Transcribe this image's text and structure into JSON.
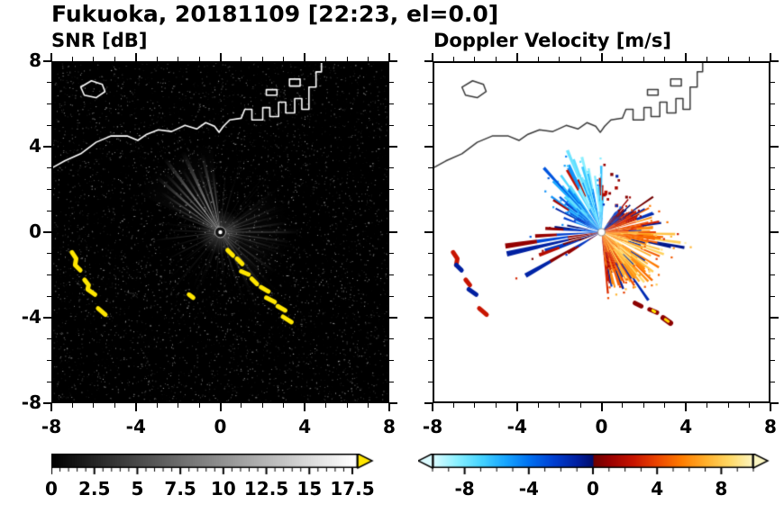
{
  "title": "Fukuoka, 20181109 [22:23, el=0.0]",
  "axes": {
    "xlim": [
      -8,
      8
    ],
    "ylim": [
      -8,
      8
    ],
    "major_ticks": [
      -8,
      -4,
      0,
      4,
      8
    ],
    "minor_step": 1,
    "x_tick_labels": [
      "-8",
      "-4",
      "0",
      "4",
      "8"
    ],
    "y_tick_values": [
      8,
      4,
      0,
      -4,
      -8
    ],
    "y_tick_labels": [
      "8",
      "4",
      "0",
      "-4",
      "-8"
    ]
  },
  "coastline": {
    "snr_color": "#ffffff",
    "doppler_color": "#3a3a3a",
    "paths": [
      {
        "closed": false,
        "pts": [
          [
            -8,
            3.07
          ],
          [
            -7.45,
            3.37
          ],
          [
            -6.68,
            3.71
          ],
          [
            -5.95,
            4.25
          ],
          [
            -5.23,
            4.55
          ],
          [
            -4.46,
            4.55
          ],
          [
            -3.95,
            4.34
          ],
          [
            -3.52,
            4.63
          ],
          [
            -2.97,
            4.84
          ],
          [
            -2.33,
            4.76
          ],
          [
            -1.69,
            5.05
          ],
          [
            -1.13,
            4.88
          ],
          [
            -0.7,
            5.18
          ],
          [
            -0.28,
            5.01
          ],
          [
            -0.06,
            4.72
          ],
          [
            0.15,
            5.01
          ],
          [
            0.45,
            5.31
          ],
          [
            1.0,
            5.39
          ],
          [
            1.17,
            5.81
          ],
          [
            1.51,
            5.81
          ],
          [
            1.51,
            5.31
          ],
          [
            2.03,
            5.31
          ],
          [
            2.03,
            5.89
          ],
          [
            2.37,
            5.89
          ],
          [
            2.37,
            5.47
          ],
          [
            2.79,
            5.47
          ],
          [
            2.79,
            6.15
          ],
          [
            3.13,
            6.15
          ],
          [
            3.13,
            5.64
          ],
          [
            3.56,
            5.64
          ],
          [
            3.56,
            6.32
          ],
          [
            3.9,
            6.32
          ],
          [
            3.9,
            5.81
          ],
          [
            4.24,
            5.81
          ],
          [
            4.24,
            6.86
          ],
          [
            4.58,
            6.86
          ],
          [
            4.58,
            7.58
          ],
          [
            4.84,
            7.58
          ],
          [
            4.84,
            8.0
          ]
        ]
      },
      {
        "closed": true,
        "pts": [
          [
            -6.68,
            6.86
          ],
          [
            -6.17,
            7.16
          ],
          [
            -5.65,
            6.99
          ],
          [
            -5.52,
            6.65
          ],
          [
            -5.95,
            6.36
          ],
          [
            -6.51,
            6.48
          ]
        ]
      },
      {
        "closed": true,
        "pts": [
          [
            2.2,
            6.74
          ],
          [
            2.71,
            6.74
          ],
          [
            2.71,
            6.48
          ],
          [
            2.2,
            6.48
          ]
        ]
      },
      {
        "closed": true,
        "pts": [
          [
            3.31,
            7.24
          ],
          [
            3.82,
            7.24
          ],
          [
            3.82,
            6.91
          ],
          [
            3.31,
            6.91
          ]
        ]
      }
    ]
  },
  "chart_data": [
    {
      "type": "heatmap",
      "name": "snr-ppi",
      "title": "SNR [dB]",
      "xlim": [
        -8,
        8
      ],
      "ylim": [
        -8,
        8
      ],
      "background": "#000000",
      "radar_center": [
        0,
        0
      ],
      "colorbar": {
        "min": 0,
        "max": 17.5,
        "ticks": [
          0,
          2.5,
          5,
          7.5,
          10,
          12.5,
          15,
          17.5
        ],
        "tick_labels": [
          "0",
          "2.5",
          "5",
          "7.5",
          "10",
          "12.5",
          "15",
          "17.5"
        ],
        "ramp_start": "#000000",
        "ramp_end": "#ffffff",
        "overflow_color": "#ffe600"
      },
      "beams": [
        [
          97,
          2,
          3.0,
          0.3
        ],
        [
          103,
          2.5,
          3.8,
          0.42
        ],
        [
          109,
          2,
          3.2,
          0.3
        ],
        [
          115,
          3,
          4.2,
          0.46
        ],
        [
          121,
          2,
          3.5,
          0.34
        ],
        [
          127,
          2.5,
          4.4,
          0.5
        ],
        [
          133,
          2,
          3.8,
          0.4
        ],
        [
          139,
          2.5,
          4.0,
          0.44
        ],
        [
          146,
          2,
          3.4,
          0.34
        ],
        [
          152,
          2,
          2.8,
          0.24
        ],
        [
          158,
          2,
          2.4,
          0.18
        ],
        [
          168,
          1.5,
          2.2,
          0.14
        ],
        [
          178,
          1.5,
          2.6,
          0.16
        ],
        [
          187,
          1.5,
          3.2,
          0.2
        ],
        [
          196,
          1.5,
          2.3,
          0.14
        ],
        [
          207,
          1.5,
          2.8,
          0.16
        ],
        [
          218,
          1.5,
          2.2,
          0.12
        ],
        [
          252,
          1.5,
          2.0,
          0.1
        ],
        [
          265,
          1.5,
          2.4,
          0.12
        ],
        [
          275,
          1.5,
          2.2,
          0.1
        ],
        [
          288,
          2,
          2.6,
          0.14
        ],
        [
          298,
          2,
          3.0,
          0.2
        ],
        [
          308,
          2,
          3.4,
          0.22
        ],
        [
          316,
          2,
          2.8,
          0.18
        ],
        [
          324,
          2,
          3.2,
          0.2
        ],
        [
          334,
          2,
          2.6,
          0.15
        ],
        [
          344,
          2,
          3.0,
          0.2
        ],
        [
          352,
          2,
          3.4,
          0.22
        ],
        [
          0,
          2,
          3.8,
          0.26
        ],
        [
          8,
          2,
          3.2,
          0.22
        ],
        [
          16,
          2,
          2.8,
          0.18
        ],
        [
          24,
          2,
          3.0,
          0.2
        ],
        [
          33,
          2,
          2.4,
          0.15
        ],
        [
          45,
          1.5,
          2.2,
          0.12
        ],
        [
          60,
          1.5,
          2.0,
          0.1
        ],
        [
          75,
          1.5,
          2.4,
          0.12
        ],
        [
          85,
          1.5,
          2.8,
          0.15
        ]
      ],
      "clutter_color": "#ffe600",
      "clutter_paths": [
        [
          [
            0.35,
            -0.85
          ],
          [
            0.6,
            -1.1
          ]
        ],
        [
          [
            0.8,
            -1.25
          ],
          [
            1.05,
            -1.5
          ]
        ],
        [
          [
            1.0,
            -1.85
          ],
          [
            1.35,
            -2.0
          ]
        ],
        [
          [
            1.5,
            -2.2
          ],
          [
            1.75,
            -2.45
          ]
        ],
        [
          [
            1.95,
            -2.6
          ],
          [
            2.3,
            -2.8
          ]
        ],
        [
          [
            2.2,
            -3.1
          ],
          [
            2.6,
            -3.3
          ]
        ],
        [
          [
            2.75,
            -3.5
          ],
          [
            3.1,
            -3.7
          ]
        ],
        [
          [
            3.0,
            -4.0
          ],
          [
            3.4,
            -4.25
          ]
        ],
        [
          [
            -1.5,
            -2.95
          ],
          [
            -1.3,
            -3.1
          ]
        ],
        [
          [
            -7.1,
            -0.95
          ],
          [
            -6.9,
            -1.25
          ],
          [
            -6.95,
            -1.55
          ],
          [
            -6.7,
            -1.8
          ]
        ],
        [
          [
            -6.5,
            -2.25
          ],
          [
            -6.3,
            -2.5
          ],
          [
            -6.35,
            -2.7
          ],
          [
            -6.0,
            -2.95
          ]
        ],
        [
          [
            -5.85,
            -3.6
          ],
          [
            -5.5,
            -3.9
          ]
        ]
      ]
    },
    {
      "type": "heatmap",
      "name": "doppler-ppi",
      "title": "Doppler Velocity [m/s]",
      "xlim": [
        -8,
        8
      ],
      "ylim": [
        -8,
        8
      ],
      "background": "#ffffff",
      "radar_center": [
        0,
        0
      ],
      "colorbar": {
        "min": -10,
        "max": 10,
        "ticks": [
          -8,
          -4,
          0,
          4,
          8
        ],
        "tick_labels": [
          "-8",
          "-4",
          "0",
          "4",
          "8"
        ],
        "stops": [
          {
            "v": -10,
            "c": "#dcfbff"
          },
          {
            "v": -8.5,
            "c": "#8af0ff"
          },
          {
            "v": -7,
            "c": "#46d4ff"
          },
          {
            "v": -5.5,
            "c": "#18a6ff"
          },
          {
            "v": -4,
            "c": "#0070f0"
          },
          {
            "v": -2.5,
            "c": "#0040d2"
          },
          {
            "v": -1,
            "c": "#001fa0"
          },
          {
            "v": -0.05,
            "c": "#000e6e"
          },
          {
            "v": 0.05,
            "c": "#6e0000"
          },
          {
            "v": 1,
            "c": "#980000"
          },
          {
            "v": 2.5,
            "c": "#c81400"
          },
          {
            "v": 4,
            "c": "#ec4600"
          },
          {
            "v": 5.5,
            "c": "#ff7c00"
          },
          {
            "v": 7,
            "c": "#ffb02c"
          },
          {
            "v": 8.5,
            "c": "#ffd966"
          },
          {
            "v": 10,
            "c": "#fbf6c3"
          }
        ]
      },
      "velocity_model": {
        "blue_lobe": {
          "center": 105,
          "amp": 7,
          "width": 55
        },
        "warm_lobe": {
          "center": -30,
          "amp": 7,
          "width": 65
        },
        "jitter": 2.5
      },
      "fans": [
        {
          "name": "blue-fan",
          "a0": 86,
          "a1": 153,
          "step": 1.6,
          "rBase": 3.0,
          "prob": 0.95,
          "spike": 0.15,
          "spikeMul": 1.3,
          "gaps": [
            [
              96,
              99
            ],
            [
              119,
              122
            ]
          ],
          "rEnv": [
            [
              86,
              0.75
            ],
            [
              100,
              1.05
            ],
            [
              112,
              1.25
            ],
            [
              125,
              1.0
            ],
            [
              140,
              0.95
            ],
            [
              153,
              0.7
            ]
          ]
        },
        {
          "name": "left-streaks",
          "a0": 153,
          "a1": 216,
          "step": 2.4,
          "rBase": 2.0,
          "prob": 0.5,
          "spike": 0.22,
          "spikeMul": 1.9,
          "gaps": [],
          "rEnv": [
            [
              153,
              0.8
            ],
            [
              170,
              1.0
            ],
            [
              187,
              1.6
            ],
            [
              200,
              1.1
            ],
            [
              216,
              0.9
            ]
          ]
        },
        {
          "name": "warm-fan",
          "a0": -85,
          "a1": 55,
          "step": 1.5,
          "rBase": 2.6,
          "prob": 0.96,
          "spike": 0.12,
          "spikeMul": 1.3,
          "gaps": [
            [
              -31,
              -27
            ],
            [
              12,
              14
            ]
          ],
          "rEnv": [
            [
              -85,
              0.85
            ],
            [
              -60,
              1.05
            ],
            [
              -40,
              1.15
            ],
            [
              -20,
              1.05
            ],
            [
              0,
              1.0
            ],
            [
              20,
              0.95
            ],
            [
              35,
              0.75
            ],
            [
              55,
              0.6
            ]
          ]
        },
        {
          "name": "upper-right-speckle",
          "a0": 50,
          "a1": 86,
          "step": 3,
          "rBase": 2.8,
          "prob": 0.45,
          "speck": true
        }
      ],
      "patches": [
        {
          "pts": [
            [
              -7.1,
              -0.95
            ],
            [
              -6.9,
              -1.25
            ],
            [
              -6.95,
              -1.55
            ]
          ],
          "c": "#c81400",
          "w": 5
        },
        {
          "pts": [
            [
              -6.95,
              -1.55
            ],
            [
              -6.7,
              -1.8
            ]
          ],
          "c": "#001fa0",
          "w": 5
        },
        {
          "pts": [
            [
              -6.5,
              -2.25
            ],
            [
              -6.3,
              -2.5
            ]
          ],
          "c": "#c81400",
          "w": 5
        },
        {
          "pts": [
            [
              -6.35,
              -2.7
            ],
            [
              -6.0,
              -2.95
            ]
          ],
          "c": "#001fa0",
          "w": 5
        },
        {
          "pts": [
            [
              -5.85,
              -3.6
            ],
            [
              -5.5,
              -3.9
            ]
          ],
          "c": "#c81400",
          "w": 5
        },
        {
          "pts": [
            [
              1.6,
              -3.35
            ],
            [
              1.9,
              -3.5
            ]
          ],
          "c": "#8c0000",
          "w": 5
        },
        {
          "pts": [
            [
              2.3,
              -3.65
            ],
            [
              2.65,
              -3.8
            ]
          ],
          "c": "#8c0000",
          "w": 5
        },
        {
          "pts": [
            [
              2.45,
              -3.7
            ],
            [
              2.55,
              -3.76
            ]
          ],
          "c": "#ffe600",
          "w": 3
        },
        {
          "pts": [
            [
              2.95,
              -4.05
            ],
            [
              3.3,
              -4.3
            ]
          ],
          "c": "#8c0000",
          "w": 6
        },
        {
          "pts": [
            [
              3.05,
              -4.12
            ],
            [
              3.2,
              -4.22
            ]
          ],
          "c": "#ffd700",
          "w": 3
        }
      ]
    }
  ]
}
